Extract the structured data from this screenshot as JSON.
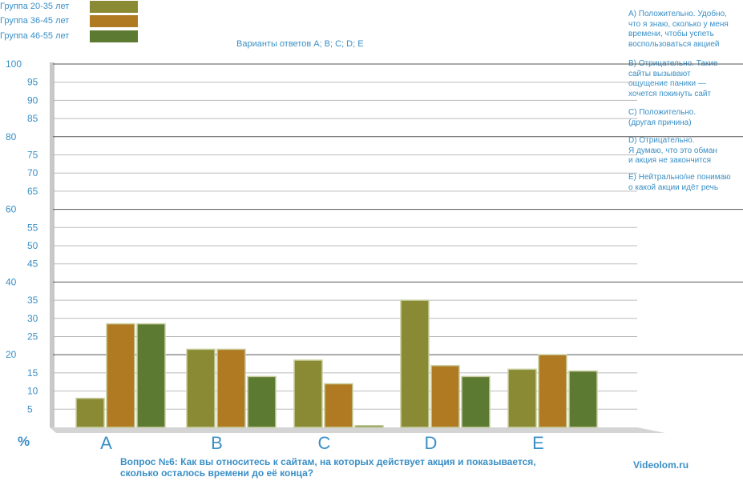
{
  "chart_data": {
    "type": "bar",
    "title": "Вопрос №6: Как вы относитесь к сайтам, на которых действует акция и показывается,\nсколько осталось времени до её конца?",
    "subtitle": "Варианты ответов A; B; C; D; E",
    "categories": [
      "A",
      "B",
      "C",
      "D",
      "E"
    ],
    "series": [
      {
        "name": "Группа 20-35 лет",
        "color": "#8a8a35",
        "values": [
          8,
          21.5,
          18.5,
          35,
          16
        ]
      },
      {
        "name": "Группа 36-45 лет",
        "color": "#b07a23",
        "values": [
          28.5,
          21.5,
          12,
          17,
          20
        ]
      },
      {
        "name": "Группа 46-55 лет",
        "color": "#5d7a32",
        "values": [
          28.5,
          14,
          0.5,
          14,
          15.5
        ]
      }
    ],
    "ylabel": "%",
    "ylim": [
      0,
      100
    ],
    "y_ticks": [
      {
        "v": 5,
        "label": "5",
        "major": false
      },
      {
        "v": 10,
        "label": "10",
        "major": false
      },
      {
        "v": 15,
        "label": "15",
        "major": false
      },
      {
        "v": 20,
        "label": "20",
        "major": true
      },
      {
        "v": 25,
        "label": "25",
        "major": false
      },
      {
        "v": 30,
        "label": "30",
        "major": false
      },
      {
        "v": 35,
        "label": "35",
        "major": false
      },
      {
        "v": 40,
        "label": "40",
        "major": true
      },
      {
        "v": 45,
        "label": "45",
        "major": false
      },
      {
        "v": 50,
        "label": "50",
        "major": false
      },
      {
        "v": 55,
        "label": "55",
        "major": false
      },
      {
        "v": 60,
        "label": "60",
        "major": true
      },
      {
        "v": 65,
        "label": "65",
        "major": false
      },
      {
        "v": 70,
        "label": "70",
        "major": false
      },
      {
        "v": 75,
        "label": "75",
        "major": false
      },
      {
        "v": 80,
        "label": "80",
        "major": true
      },
      {
        "v": 85,
        "label": "85",
        "major": false
      },
      {
        "v": 90,
        "label": "90",
        "major": false
      },
      {
        "v": 95,
        "label": "95",
        "major": false
      },
      {
        "v": 100,
        "label": "100",
        "major": true
      }
    ]
  },
  "legend": [
    {
      "label": "Группа 20-35 лет",
      "color": "#8a8a35"
    },
    {
      "label": "Группа 36-45 лет",
      "color": "#b07a23"
    },
    {
      "label": "Группа 46-55 лет",
      "color": "#5d7a32"
    }
  ],
  "answers": [
    "A) Положительно. Удобно,\nчто я знаю, сколько у меня\nвремени, чтобы успеть\nвоспользоваться акцией",
    "B) Отрицательно. Такие\nсайты вызывают\nощущение паники —\nхочется покинуть сайт",
    "C) Положительно.\n(другая причина)",
    "D) Отрицательно.\nЯ думаю, что это обман\nи акция не закончится",
    "E) Нейтрально/не понимаю\n о какой акции идёт речь"
  ],
  "brand": "Videolom.ru"
}
